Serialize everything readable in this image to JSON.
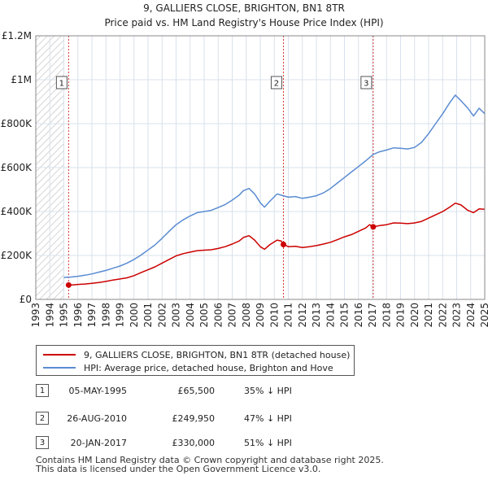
{
  "chart_data": {
    "type": "line",
    "title": "9, GALLIERS CLOSE, BRIGHTON, BN1 8TR",
    "subtitle": "Price paid vs. HM Land Registry's House Price Index (HPI)",
    "xlim": [
      1993,
      2025
    ],
    "ylim": [
      0,
      1200000
    ],
    "x_ticks": [
      1993,
      1994,
      1995,
      1996,
      1997,
      1998,
      1999,
      2000,
      2001,
      2002,
      2003,
      2004,
      2005,
      2006,
      2007,
      2008,
      2009,
      2010,
      2011,
      2012,
      2013,
      2014,
      2015,
      2016,
      2017,
      2018,
      2019,
      2020,
      2021,
      2022,
      2023,
      2024,
      2025
    ],
    "y_ticks": [
      {
        "value": 0,
        "label": "£0"
      },
      {
        "value": 200000,
        "label": "£200K"
      },
      {
        "value": 400000,
        "label": "£400K"
      },
      {
        "value": 600000,
        "label": "£600K"
      },
      {
        "value": 800000,
        "label": "£800K"
      },
      {
        "value": 1000000,
        "label": "£1M"
      },
      {
        "value": 1200000,
        "label": "£1.2M"
      }
    ],
    "hatch_region": [
      1993,
      1995
    ],
    "colors": {
      "price": "#cc0000",
      "hpi": "#5a8cd2",
      "grid": "#d9e1ec",
      "vline": "#cc0000"
    },
    "series": [
      {
        "name": "9, GALLIERS CLOSE, BRIGHTON, BN1 8TR (detached house)",
        "color": "#cc0000",
        "points": [
          [
            1995.34,
            65500
          ],
          [
            1995.6,
            66000
          ],
          [
            1996.0,
            68000
          ],
          [
            1996.5,
            70000
          ],
          [
            1997.0,
            73000
          ],
          [
            1997.5,
            77000
          ],
          [
            1998.0,
            82000
          ],
          [
            1998.5,
            88000
          ],
          [
            1999.0,
            93000
          ],
          [
            1999.5,
            98000
          ],
          [
            2000.0,
            108000
          ],
          [
            2000.5,
            122000
          ],
          [
            2001.0,
            135000
          ],
          [
            2001.5,
            148000
          ],
          [
            2002.0,
            165000
          ],
          [
            2002.5,
            182000
          ],
          [
            2003.0,
            198000
          ],
          [
            2003.5,
            208000
          ],
          [
            2004.0,
            215000
          ],
          [
            2004.5,
            222000
          ],
          [
            2005.0,
            224000
          ],
          [
            2005.5,
            226000
          ],
          [
            2006.0,
            232000
          ],
          [
            2006.5,
            240000
          ],
          [
            2007.0,
            252000
          ],
          [
            2007.5,
            266000
          ],
          [
            2007.8,
            282000
          ],
          [
            2008.2,
            290000
          ],
          [
            2008.6,
            270000
          ],
          [
            2009.0,
            240000
          ],
          [
            2009.3,
            228000
          ],
          [
            2009.7,
            250000
          ],
          [
            2010.2,
            270000
          ],
          [
            2010.5,
            265000
          ],
          [
            2010.65,
            249950
          ],
          [
            2011.0,
            240000
          ],
          [
            2011.5,
            242000
          ],
          [
            2012.0,
            236000
          ],
          [
            2012.5,
            240000
          ],
          [
            2013.0,
            245000
          ],
          [
            2013.5,
            252000
          ],
          [
            2014.0,
            260000
          ],
          [
            2014.5,
            272000
          ],
          [
            2015.0,
            285000
          ],
          [
            2015.5,
            295000
          ],
          [
            2016.0,
            310000
          ],
          [
            2016.5,
            325000
          ],
          [
            2016.8,
            340000
          ],
          [
            2017.05,
            330000
          ],
          [
            2017.5,
            336000
          ],
          [
            2018.0,
            340000
          ],
          [
            2018.5,
            348000
          ],
          [
            2019.0,
            347000
          ],
          [
            2019.5,
            345000
          ],
          [
            2020.0,
            348000
          ],
          [
            2020.5,
            355000
          ],
          [
            2021.0,
            370000
          ],
          [
            2021.5,
            385000
          ],
          [
            2022.0,
            400000
          ],
          [
            2022.5,
            420000
          ],
          [
            2022.9,
            438000
          ],
          [
            2023.3,
            430000
          ],
          [
            2023.8,
            405000
          ],
          [
            2024.2,
            395000
          ],
          [
            2024.6,
            412000
          ],
          [
            2025.0,
            410000
          ]
        ]
      },
      {
        "name": "HPI: Average price, detached house, Brighton and Hove",
        "color": "#5a8cd2",
        "points": [
          [
            1995.0,
            100000
          ],
          [
            1995.5,
            102000
          ],
          [
            1996.0,
            105000
          ],
          [
            1996.5,
            110000
          ],
          [
            1997.0,
            116000
          ],
          [
            1997.5,
            124000
          ],
          [
            1998.0,
            132000
          ],
          [
            1998.5,
            142000
          ],
          [
            1999.0,
            152000
          ],
          [
            1999.5,
            165000
          ],
          [
            2000.0,
            182000
          ],
          [
            2000.5,
            202000
          ],
          [
            2001.0,
            225000
          ],
          [
            2001.5,
            248000
          ],
          [
            2002.0,
            278000
          ],
          [
            2002.5,
            310000
          ],
          [
            2003.0,
            340000
          ],
          [
            2003.5,
            362000
          ],
          [
            2004.0,
            380000
          ],
          [
            2004.5,
            395000
          ],
          [
            2005.0,
            400000
          ],
          [
            2005.5,
            405000
          ],
          [
            2006.0,
            418000
          ],
          [
            2006.5,
            432000
          ],
          [
            2007.0,
            452000
          ],
          [
            2007.5,
            475000
          ],
          [
            2007.8,
            495000
          ],
          [
            2008.2,
            505000
          ],
          [
            2008.6,
            480000
          ],
          [
            2009.0,
            440000
          ],
          [
            2009.3,
            420000
          ],
          [
            2009.7,
            448000
          ],
          [
            2010.2,
            480000
          ],
          [
            2010.65,
            472000
          ],
          [
            2011.0,
            465000
          ],
          [
            2011.5,
            468000
          ],
          [
            2012.0,
            460000
          ],
          [
            2012.5,
            465000
          ],
          [
            2013.0,
            472000
          ],
          [
            2013.5,
            485000
          ],
          [
            2014.0,
            505000
          ],
          [
            2014.5,
            530000
          ],
          [
            2015.0,
            555000
          ],
          [
            2015.5,
            580000
          ],
          [
            2016.0,
            605000
          ],
          [
            2016.5,
            630000
          ],
          [
            2017.05,
            660000
          ],
          [
            2017.5,
            672000
          ],
          [
            2018.0,
            680000
          ],
          [
            2018.5,
            690000
          ],
          [
            2019.0,
            688000
          ],
          [
            2019.5,
            685000
          ],
          [
            2020.0,
            692000
          ],
          [
            2020.5,
            715000
          ],
          [
            2021.0,
            755000
          ],
          [
            2021.5,
            800000
          ],
          [
            2022.0,
            845000
          ],
          [
            2022.5,
            895000
          ],
          [
            2022.9,
            930000
          ],
          [
            2023.3,
            905000
          ],
          [
            2023.8,
            870000
          ],
          [
            2024.2,
            835000
          ],
          [
            2024.6,
            870000
          ],
          [
            2025.0,
            845000
          ]
        ]
      }
    ],
    "sales": [
      {
        "id": "1",
        "x": 1995.34,
        "price": 65500
      },
      {
        "id": "2",
        "x": 2010.65,
        "price": 249950
      },
      {
        "id": "3",
        "x": 2017.05,
        "price": 330000
      }
    ]
  },
  "legend": {
    "price_label": "9, GALLIERS CLOSE, BRIGHTON, BN1 8TR (detached house)",
    "hpi_label": "HPI: Average price, detached house, Brighton and Hove"
  },
  "sales_table": [
    {
      "num": "1",
      "date": "05-MAY-1995",
      "price": "£65,500",
      "hpi": "35% ↓ HPI"
    },
    {
      "num": "2",
      "date": "26-AUG-2010",
      "price": "£249,950",
      "hpi": "47% ↓ HPI"
    },
    {
      "num": "3",
      "date": "20-JAN-2017",
      "price": "£330,000",
      "hpi": "51% ↓ HPI"
    }
  ],
  "footer": {
    "line1": "Contains HM Land Registry data © Crown copyright and database right 2025.",
    "line2": "This data is licensed under the Open Government Licence v3.0."
  }
}
